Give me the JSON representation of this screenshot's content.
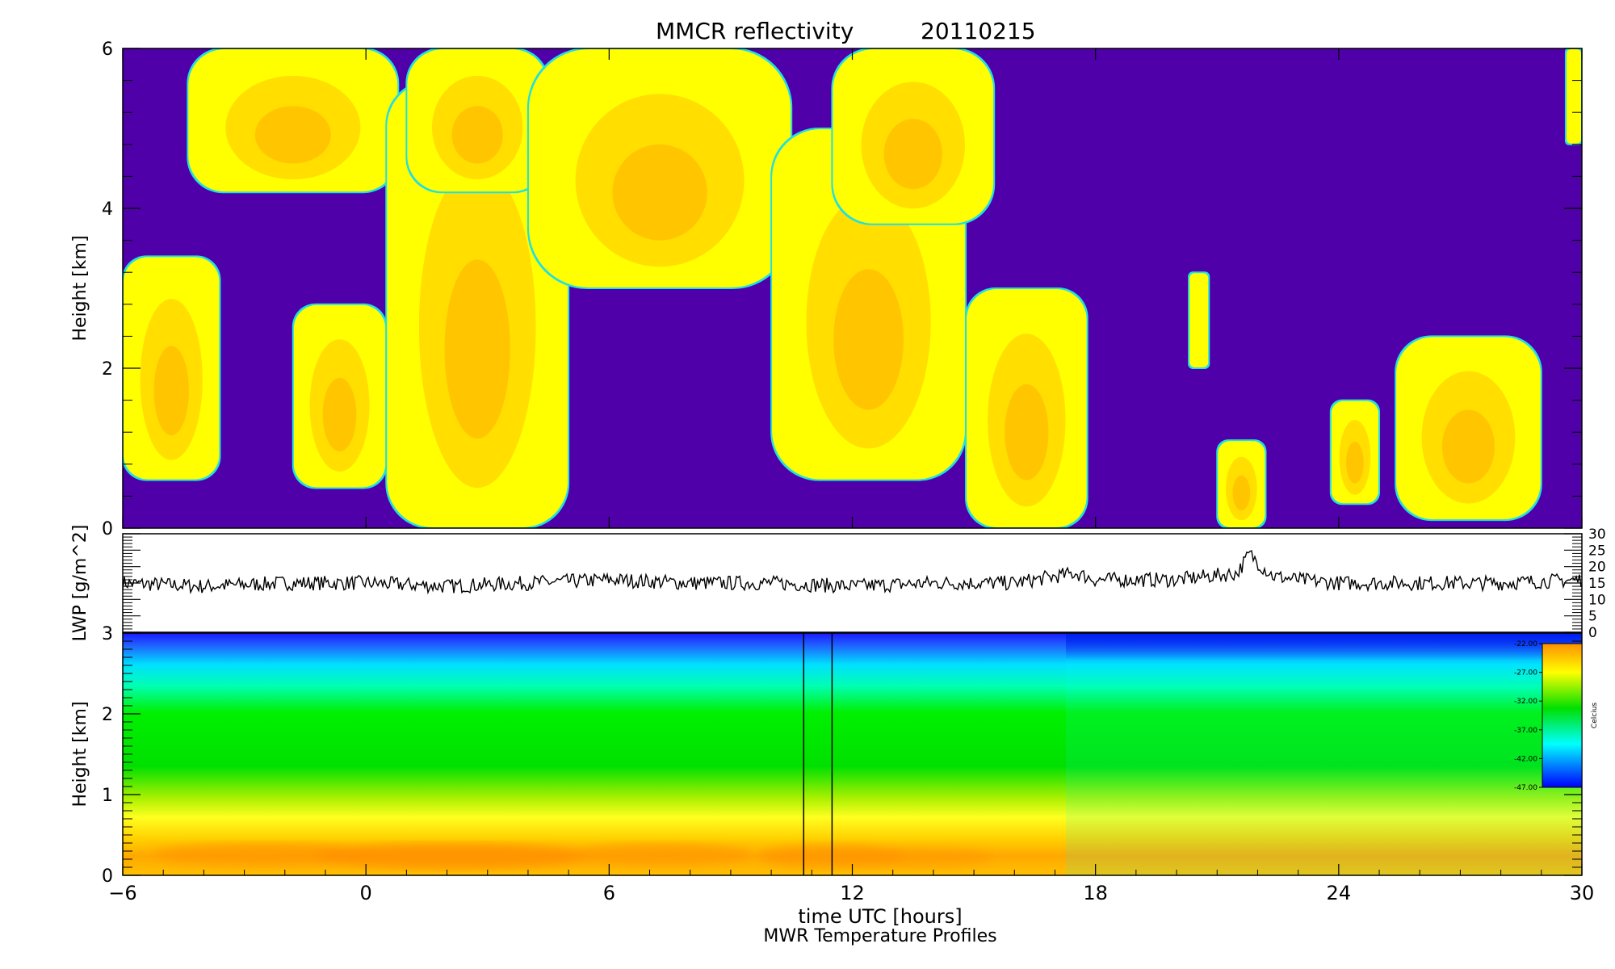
{
  "chart_data": [
    {
      "type": "heatmap",
      "panel": "reflectivity",
      "title": "MMCR reflectivity",
      "date": "20110215",
      "ylabel": "Height [km]",
      "xlim": [
        -6,
        30
      ],
      "ylim": [
        0,
        6
      ],
      "y_ticks": [
        "0",
        "2",
        "4",
        "6"
      ],
      "colors": {
        "background": "#5000a8",
        "low": "#ffff00",
        "mid": "#ffd800",
        "high": "#ffa800",
        "edge": "#20e0e0"
      },
      "cloud_regions": [
        {
          "x": [
            -6,
            -3.6
          ],
          "y": [
            0.6,
            3.4
          ]
        },
        {
          "x": [
            -4.4,
            0.8
          ],
          "y": [
            4.2,
            6.0
          ]
        },
        {
          "x": [
            -1.8,
            0.5
          ],
          "y": [
            0.5,
            2.8
          ]
        },
        {
          "x": [
            0.5,
            5.0
          ],
          "y": [
            0.0,
            5.6
          ]
        },
        {
          "x": [
            1.0,
            4.5
          ],
          "y": [
            4.2,
            6.0
          ]
        },
        {
          "x": [
            4.0,
            10.5
          ],
          "y": [
            3.0,
            6.0
          ]
        },
        {
          "x": [
            10.0,
            14.8
          ],
          "y": [
            0.6,
            5.0
          ]
        },
        {
          "x": [
            11.5,
            15.5
          ],
          "y": [
            3.8,
            6.0
          ]
        },
        {
          "x": [
            14.8,
            17.8
          ],
          "y": [
            0.0,
            3.0
          ]
        },
        {
          "x": [
            20.3,
            20.8
          ],
          "y": [
            2.0,
            3.2
          ]
        },
        {
          "x": [
            21.0,
            22.2
          ],
          "y": [
            0.0,
            1.1
          ]
        },
        {
          "x": [
            23.8,
            25.0
          ],
          "y": [
            0.3,
            1.6
          ]
        },
        {
          "x": [
            25.4,
            29.0
          ],
          "y": [
            0.1,
            2.4
          ]
        },
        {
          "x": [
            29.6,
            30.0
          ],
          "y": [
            4.8,
            6.0
          ]
        }
      ]
    },
    {
      "type": "line",
      "panel": "lwp",
      "ylabel": "LWP [g/m^2]",
      "xlim": [
        -6,
        30
      ],
      "ylim": [
        0,
        30
      ],
      "y_ticks": [
        "0",
        "5",
        "10",
        "15",
        "20",
        "25",
        "30"
      ],
      "series": [
        {
          "x": [
            -6,
            -4,
            -2,
            0,
            2,
            4,
            6,
            8,
            10,
            12,
            14,
            16,
            17.5,
            18,
            20,
            21.5,
            21.8,
            22.1,
            22.4,
            23,
            24,
            26,
            28,
            30
          ],
          "values": [
            15,
            14,
            15,
            15,
            14,
            15,
            16,
            15,
            15,
            14,
            15,
            15,
            18,
            16,
            16,
            18,
            24,
            20,
            17,
            16,
            15,
            15,
            15,
            16
          ]
        }
      ]
    },
    {
      "type": "heatmap",
      "panel": "temperature",
      "subtitle": "MWR Temperature Profiles",
      "xlabel": "time UTC [hours]",
      "ylabel": "Height [km]",
      "xlim": [
        -6,
        30
      ],
      "ylim": [
        0,
        3
      ],
      "x_ticks": [
        "−6",
        "0",
        "6",
        "12",
        "18",
        "24",
        "30"
      ],
      "y_ticks": [
        "0",
        "1",
        "2",
        "3"
      ],
      "gap_lines_x": [
        10.8,
        11.5
      ],
      "colorbar": {
        "label": "Celcius",
        "range": [
          -47,
          -22
        ],
        "ticks": [
          "-22.00",
          "-27.00",
          "-32.00",
          "-37.00",
          "-42.00",
          "-47.00"
        ]
      },
      "colors": {
        "cold": "#1010ff",
        "cyan": "#00e8ff",
        "green": "#00e000",
        "yellow": "#ffff20",
        "orange": "#ffa000"
      }
    }
  ]
}
